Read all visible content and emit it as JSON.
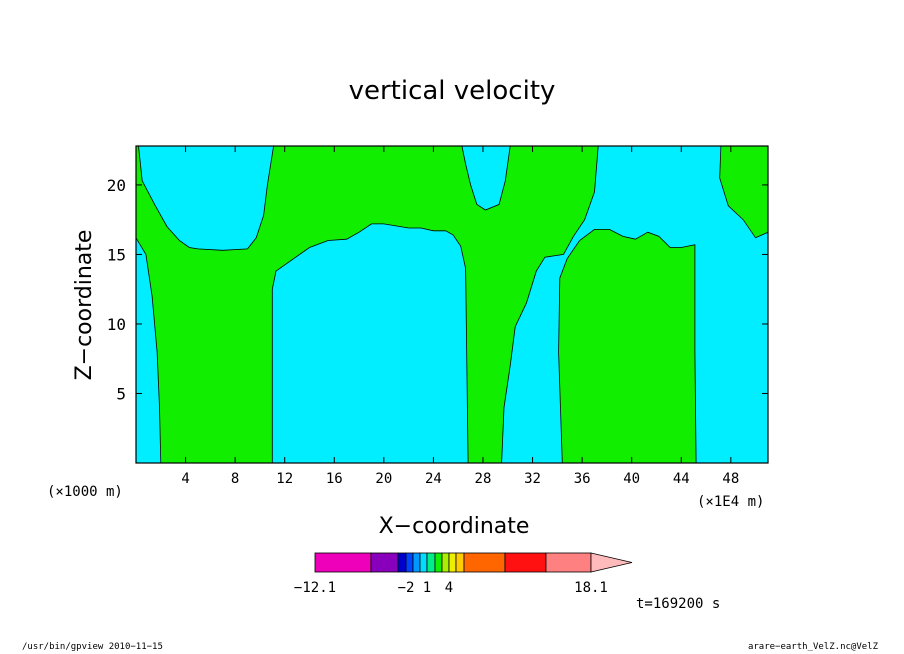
{
  "title": "vertical velocity",
  "xlabel": "X−coordinate",
  "ylabel": "Z−coordinate",
  "x_unit_left": "(×1000 m)",
  "x_unit_right": "(×1E4 m)",
  "time_label": "t=169200 s",
  "footer_left": "/usr/bin/gpview   2010−11−15",
  "footer_right": "arare−earth_VelZ.nc@VelZ",
  "chart_data": {
    "type": "heatmap",
    "title": "vertical velocity",
    "xlabel": "X-coordinate",
    "ylabel": "Z-coordinate",
    "xlim": [
      0,
      51
    ],
    "ylim": [
      0,
      22.8
    ],
    "x_ticks": [
      4,
      8,
      12,
      16,
      20,
      24,
      28,
      32,
      36,
      40,
      44,
      48
    ],
    "y_ticks": [
      5,
      10,
      15,
      20
    ],
    "colors": {
      "cyan": "#00eeff",
      "green": "#11ee00"
    },
    "regions": [
      {
        "name": "cyan-left-strip",
        "color": "cyan",
        "points": [
          [
            0,
            0
          ],
          [
            0,
            16.2
          ],
          [
            0.8,
            15
          ],
          [
            1.3,
            12
          ],
          [
            1.7,
            8
          ],
          [
            1.9,
            4
          ],
          [
            2,
            0
          ]
        ]
      },
      {
        "name": "cyan-top-left",
        "color": "cyan",
        "points": [
          [
            0.2,
            22.8
          ],
          [
            11.1,
            22.8
          ],
          [
            10.6,
            20
          ],
          [
            10.3,
            17.8
          ],
          [
            9.7,
            16.2
          ],
          [
            9,
            15.4
          ],
          [
            7,
            15.3
          ],
          [
            5,
            15.4
          ],
          [
            4.3,
            15.5
          ],
          [
            3.5,
            16
          ],
          [
            2.5,
            17
          ],
          [
            1.5,
            18.6
          ],
          [
            0.5,
            20.3
          ]
        ]
      },
      {
        "name": "cyan-center-lower",
        "color": "cyan",
        "points": [
          [
            11,
            0
          ],
          [
            11,
            12.5
          ],
          [
            11.3,
            13.8
          ],
          [
            12.4,
            14.5
          ],
          [
            14,
            15.5
          ],
          [
            15.5,
            16
          ],
          [
            17,
            16.1
          ],
          [
            18,
            16.6
          ],
          [
            19,
            17.2
          ],
          [
            20,
            17.2
          ],
          [
            22,
            16.9
          ],
          [
            23,
            16.9
          ],
          [
            24,
            16.7
          ],
          [
            25,
            16.7
          ],
          [
            25.6,
            16.4
          ],
          [
            26.2,
            15.6
          ],
          [
            26.6,
            14
          ],
          [
            26.8,
            0
          ]
        ]
      },
      {
        "name": "cyan-top-notch",
        "color": "cyan",
        "points": [
          [
            26.3,
            22.8
          ],
          [
            30.2,
            22.8
          ],
          [
            29.8,
            20.3
          ],
          [
            29.3,
            18.6
          ],
          [
            28.2,
            18.2
          ],
          [
            27.5,
            18.6
          ],
          [
            27,
            20
          ],
          [
            26.6,
            21.5
          ]
        ]
      },
      {
        "name": "cyan-right-large",
        "color": "cyan",
        "points": [
          [
            29.5,
            0
          ],
          [
            29.7,
            4
          ],
          [
            30.2,
            7
          ],
          [
            30.6,
            9.8
          ],
          [
            31.5,
            11.5
          ],
          [
            32.3,
            13.8
          ],
          [
            33,
            14.8
          ],
          [
            34.5,
            15
          ],
          [
            35.3,
            16.3
          ],
          [
            36.2,
            17.5
          ],
          [
            37,
            19.5
          ],
          [
            37.3,
            22.8
          ],
          [
            47.2,
            22.8
          ],
          [
            47.1,
            20.5
          ],
          [
            47.8,
            18.5
          ],
          [
            49,
            17.5
          ],
          [
            50,
            16.2
          ],
          [
            51,
            16.6
          ],
          [
            51,
            0
          ],
          [
            45.2,
            0
          ],
          [
            45.1,
            8
          ],
          [
            45.1,
            15.7
          ],
          [
            44,
            15.5
          ],
          [
            43.1,
            15.5
          ],
          [
            42.2,
            16.3
          ],
          [
            41.3,
            16.6
          ],
          [
            40.3,
            16.1
          ],
          [
            39.3,
            16.3
          ],
          [
            38.2,
            16.8
          ],
          [
            37,
            16.8
          ],
          [
            35.8,
            16
          ],
          [
            34.8,
            14.7
          ],
          [
            34.2,
            13.3
          ],
          [
            34.1,
            8
          ],
          [
            34.4,
            0
          ]
        ]
      }
    ],
    "colorbar": {
      "tick_labels": [
        "−12.1",
        "−2",
        "1",
        "4",
        "18.1"
      ],
      "colors": [
        "#ee00bb",
        "#8800bb",
        "#0000cc",
        "#0044ff",
        "#0099ff",
        "#00ddff",
        "#00ee88",
        "#11ee00",
        "#aaee00",
        "#eeee00",
        "#ffcc00",
        "#ff6600",
        "#ff1111",
        "#ff8080",
        "#ffbbbb"
      ]
    }
  }
}
